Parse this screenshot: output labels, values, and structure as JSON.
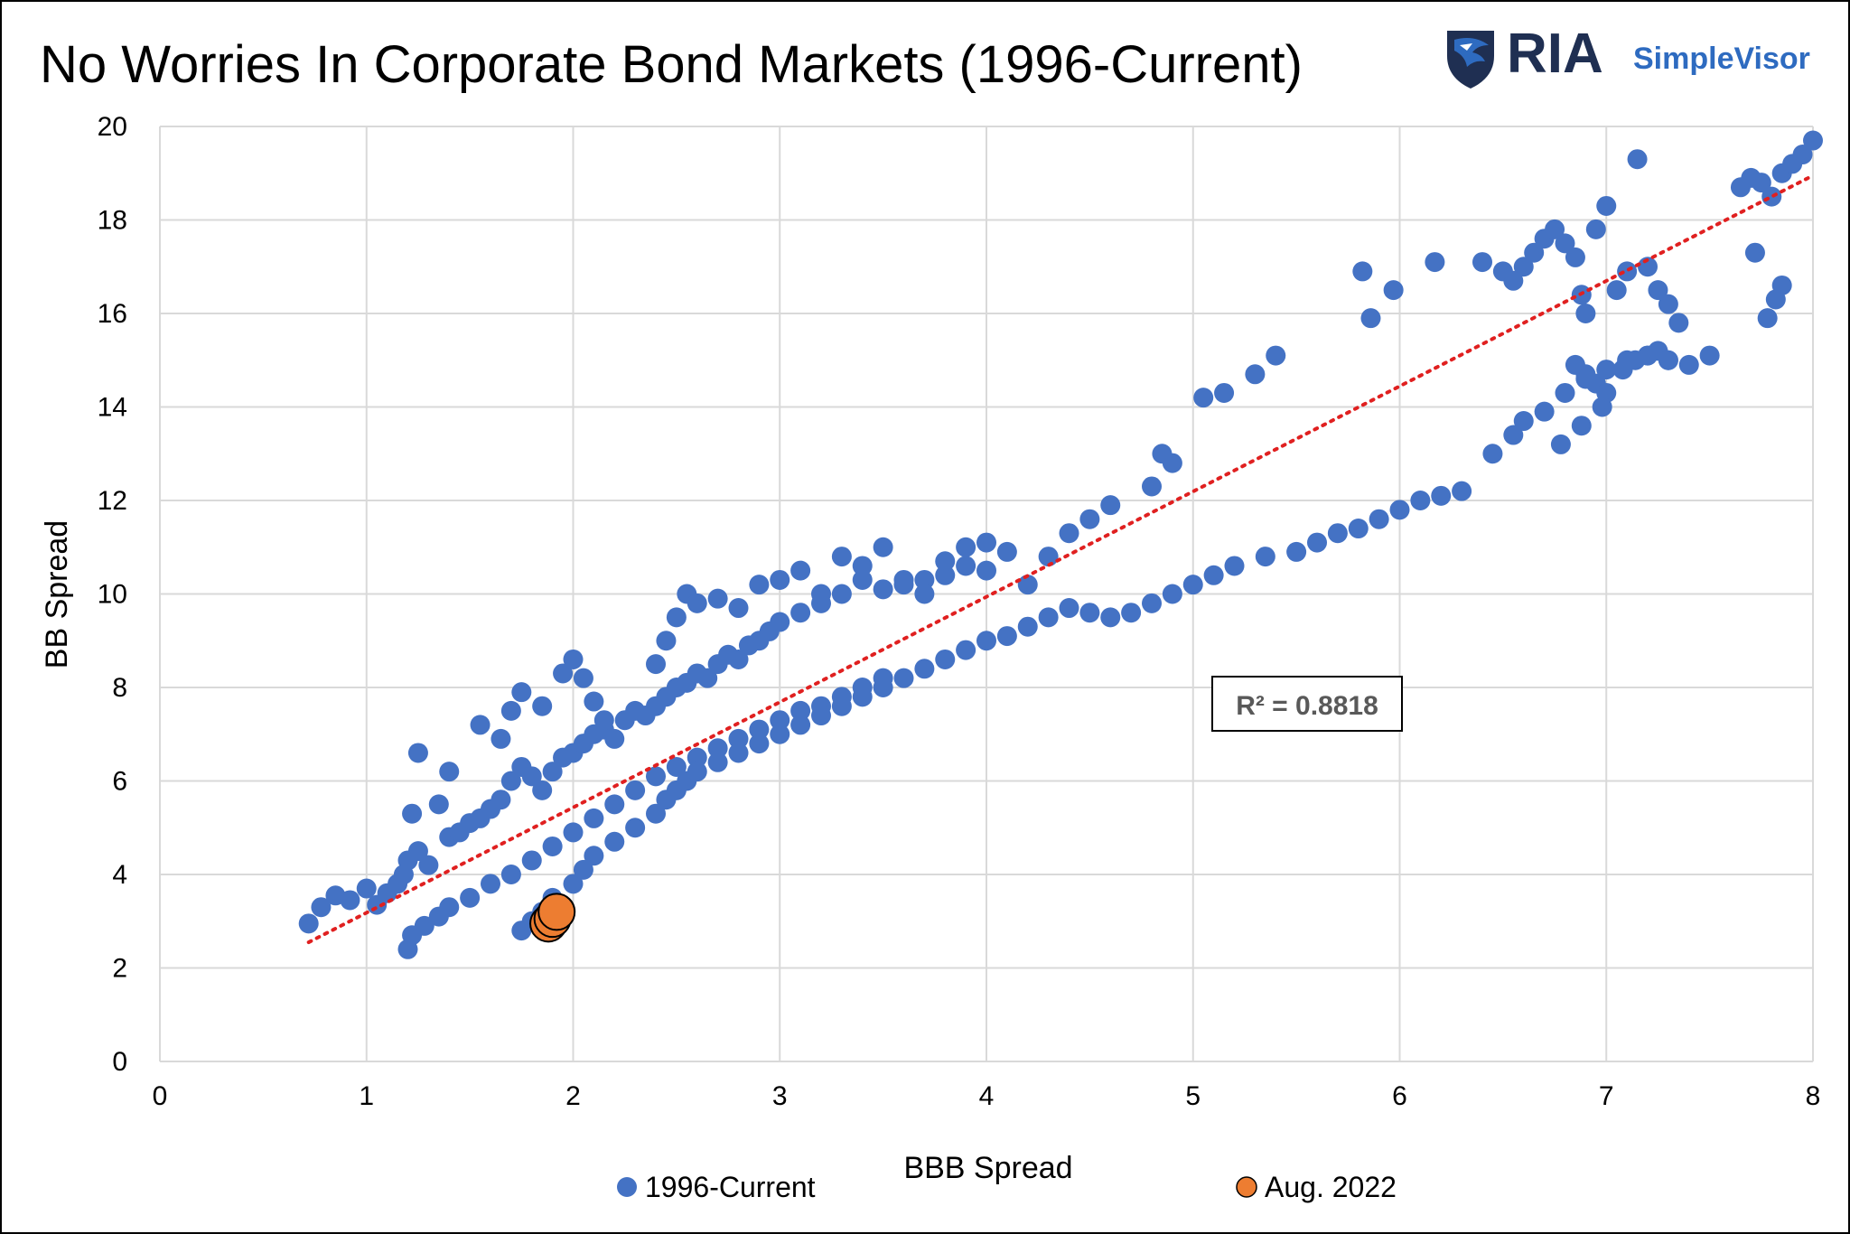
{
  "header": {
    "title": "No Worries In Corporate Bond Markets (1996-Current)",
    "logo_text": "RIA",
    "logo_subtext": "SimpleVisor",
    "logo_icon": "eagle-shield-icon"
  },
  "colors": {
    "series_main": "#4472c4",
    "series_highlight": "#ed7d31",
    "trendline": "#e02020",
    "grid": "#d9d9d9"
  },
  "chart_data": {
    "type": "scatter",
    "title": "No Worries In Corporate Bond Markets (1996-Current)",
    "xlabel": "BBB Spread",
    "ylabel": "BB Spread",
    "xlim": [
      0,
      8
    ],
    "ylim": [
      0,
      20
    ],
    "x_ticks": [
      "0",
      "1",
      "2",
      "3",
      "4",
      "5",
      "6",
      "7",
      "8"
    ],
    "y_ticks": [
      "0",
      "2",
      "4",
      "6",
      "8",
      "10",
      "12",
      "14",
      "16",
      "18",
      "20"
    ],
    "grid": true,
    "legend_position": "bottom",
    "annotation": "R² = 0.8818",
    "trendline": {
      "type": "linear",
      "x": [
        0.72,
        8.0
      ],
      "y": [
        2.55,
        18.95
      ]
    },
    "series": [
      {
        "name": "1996-Current",
        "x": [
          0.72,
          0.78,
          0.85,
          0.92,
          1.0,
          1.05,
          1.1,
          1.15,
          1.18,
          1.2,
          1.25,
          1.3,
          1.22,
          1.35,
          1.4,
          1.45,
          1.5,
          1.55,
          1.6,
          1.65,
          1.7,
          1.75,
          1.8,
          1.85,
          1.9,
          1.95,
          2.0,
          2.05,
          2.1,
          2.15,
          2.2,
          2.25,
          2.3,
          2.35,
          2.4,
          2.45,
          2.5,
          2.55,
          2.6,
          2.65,
          2.7,
          2.75,
          2.8,
          2.85,
          2.9,
          2.95,
          3.0,
          3.1,
          3.2,
          3.3,
          3.4,
          3.5,
          3.6,
          3.7,
          3.8,
          3.9,
          4.0,
          1.2,
          1.22,
          1.28,
          1.35,
          1.4,
          1.5,
          1.6,
          1.7,
          1.8,
          1.9,
          2.0,
          2.1,
          2.2,
          2.3,
          2.4,
          2.5,
          2.6,
          2.7,
          2.8,
          2.9,
          3.0,
          3.1,
          3.2,
          3.3,
          3.4,
          3.5,
          1.75,
          1.8,
          1.85,
          1.9,
          2.0,
          2.05,
          2.1,
          2.2,
          2.3,
          2.4,
          2.45,
          2.5,
          2.55,
          2.6,
          2.7,
          2.8,
          2.9,
          3.0,
          3.1,
          3.2,
          3.3,
          3.4,
          3.5,
          3.6,
          3.7,
          3.8,
          3.9,
          4.0,
          4.1,
          4.2,
          4.3,
          4.4,
          4.5,
          4.6,
          4.7,
          4.8,
          4.9,
          5.0,
          5.1,
          5.2,
          5.35,
          5.5,
          5.6,
          5.7,
          5.8,
          5.9,
          6.0,
          6.1,
          6.2,
          6.3,
          1.25,
          1.4,
          1.55,
          1.65,
          1.7,
          1.75,
          1.85,
          1.95,
          2.0,
          2.05,
          2.1,
          2.15,
          2.4,
          2.45,
          2.5,
          2.55,
          2.6,
          2.7,
          2.8,
          2.9,
          3.0,
          3.1,
          3.2,
          3.3,
          3.4,
          3.5,
          3.6,
          3.7,
          3.8,
          3.9,
          4.0,
          4.1,
          4.2,
          4.3,
          4.4,
          4.5,
          4.6,
          4.8,
          4.9,
          5.05,
          5.15,
          5.3,
          5.4,
          4.85,
          5.82,
          5.86,
          5.97,
          6.17,
          6.4,
          6.5,
          6.55,
          6.6,
          6.65,
          6.7,
          6.75,
          6.8,
          6.85,
          6.88,
          6.9,
          6.95,
          7.0,
          7.05,
          7.1,
          7.15,
          7.2,
          7.25,
          7.3,
          7.35,
          7.5,
          6.85,
          6.9,
          6.95,
          7.0,
          7.08,
          7.14,
          7.2,
          7.25,
          7.3,
          6.45,
          6.55,
          6.6,
          6.7,
          6.8,
          6.9,
          7.0,
          7.1,
          7.2,
          7.3,
          7.4,
          7.65,
          7.7,
          7.75,
          7.8,
          7.85,
          7.9,
          7.95,
          8.0,
          7.72,
          7.78,
          7.82,
          7.85,
          6.78,
          6.88,
          6.98
        ],
        "y": [
          2.95,
          3.3,
          3.55,
          3.45,
          3.7,
          3.35,
          3.6,
          3.8,
          4.0,
          4.3,
          4.5,
          4.2,
          5.3,
          5.5,
          4.8,
          4.9,
          5.1,
          5.2,
          5.4,
          5.6,
          6.0,
          6.3,
          6.1,
          5.8,
          6.2,
          6.5,
          6.6,
          6.8,
          7.0,
          7.1,
          6.9,
          7.3,
          7.5,
          7.4,
          7.6,
          7.8,
          8.0,
          8.1,
          8.3,
          8.2,
          8.5,
          8.7,
          8.6,
          8.9,
          9.0,
          9.2,
          9.4,
          9.6,
          9.8,
          10.0,
          10.3,
          10.1,
          10.2,
          10.3,
          10.4,
          10.6,
          10.5,
          2.4,
          2.7,
          2.9,
          3.1,
          3.3,
          3.5,
          3.8,
          4.0,
          4.3,
          4.6,
          4.9,
          5.2,
          5.5,
          5.8,
          6.1,
          6.3,
          6.5,
          6.7,
          6.9,
          7.1,
          7.3,
          7.5,
          7.6,
          7.8,
          8.0,
          8.2,
          2.8,
          3.0,
          3.2,
          3.5,
          3.8,
          4.1,
          4.4,
          4.7,
          5.0,
          5.3,
          5.6,
          5.8,
          6.0,
          6.2,
          6.4,
          6.6,
          6.8,
          7.0,
          7.2,
          7.4,
          7.6,
          7.8,
          8.0,
          8.2,
          8.4,
          8.6,
          8.8,
          9.0,
          9.1,
          9.3,
          9.5,
          9.7,
          9.6,
          9.5,
          9.6,
          9.8,
          10.0,
          10.2,
          10.4,
          10.6,
          10.8,
          10.9,
          11.1,
          11.3,
          11.4,
          11.6,
          11.8,
          12.0,
          12.1,
          12.2,
          6.6,
          6.2,
          7.2,
          6.9,
          7.5,
          7.9,
          7.6,
          8.3,
          8.6,
          8.2,
          7.7,
          7.3,
          8.5,
          9.0,
          9.5,
          10.0,
          9.8,
          9.9,
          9.7,
          10.2,
          10.3,
          10.5,
          10.0,
          10.8,
          10.6,
          11.0,
          10.3,
          10.0,
          10.7,
          11.0,
          11.1,
          10.9,
          10.2,
          10.8,
          11.3,
          11.6,
          11.9,
          12.3,
          12.8,
          14.2,
          14.3,
          14.7,
          15.1,
          13.0,
          16.9,
          15.9,
          16.5,
          17.1,
          17.1,
          16.9,
          16.7,
          17.0,
          17.3,
          17.6,
          17.8,
          17.5,
          17.2,
          16.4,
          16.0,
          17.8,
          18.3,
          16.5,
          16.9,
          19.3,
          17.0,
          16.5,
          16.2,
          15.8,
          15.1,
          14.9,
          14.7,
          14.5,
          14.3,
          14.8,
          15.0,
          15.1,
          15.2,
          15.0,
          13.0,
          13.4,
          13.7,
          13.9,
          14.3,
          14.6,
          14.8,
          15.0,
          15.1,
          15.0,
          14.9,
          18.7,
          18.9,
          18.8,
          18.5,
          19.0,
          19.2,
          19.4,
          19.7,
          17.3,
          15.9,
          16.3,
          16.6,
          13.2,
          13.6,
          14.0
        ]
      },
      {
        "name": "Aug. 2022",
        "x": [
          1.88,
          1.9,
          1.92
        ],
        "y": [
          2.95,
          3.05,
          3.2
        ]
      }
    ]
  }
}
